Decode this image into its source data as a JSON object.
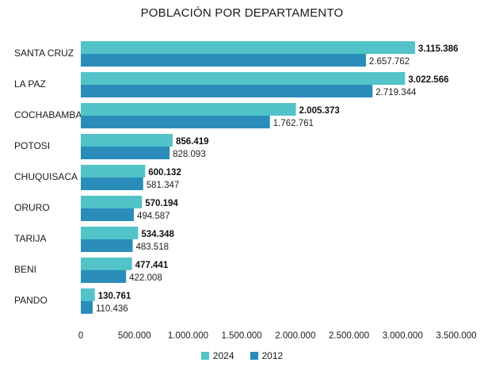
{
  "colors": {
    "series_2024": "#52c3c8",
    "series_2012": "#2a8db9"
  },
  "chart_data": {
    "type": "bar",
    "orientation": "horizontal",
    "title": "POBLACIÓN POR DEPARTAMENTO",
    "categories": [
      "SANTA CRUZ",
      "LA PAZ",
      "COCHABAMBA",
      "POTOSI",
      "CHUQUISACA",
      "ORURO",
      "TARIJA",
      "BENI",
      "PANDO"
    ],
    "series": [
      {
        "name": "2024",
        "values": [
          3115386,
          3022566,
          2005373,
          856419,
          600132,
          570194,
          534348,
          477441,
          130761
        ],
        "labels": [
          "3.115.386",
          "3.022.566",
          "2.005.373",
          "856.419",
          "600.132",
          "570.194",
          "534.348",
          "477.441",
          "130.761"
        ]
      },
      {
        "name": "2012",
        "values": [
          2657762,
          2719344,
          1762761,
          828093,
          581347,
          494587,
          483518,
          422008,
          110436
        ],
        "labels": [
          "2.657.762",
          "2.719.344",
          "1.762.761",
          "828.093",
          "581.347",
          "494.587",
          "483.518",
          "422.008",
          "110.436"
        ]
      }
    ],
    "xlim": [
      0,
      3500000
    ],
    "xticks": [
      0,
      500000,
      1000000,
      1500000,
      2000000,
      2500000,
      3000000,
      3500000
    ],
    "xtick_labels": [
      "0",
      "500.000",
      "1.000.000",
      "1.500.000",
      "2.000.000",
      "2.500.000",
      "3.000.000",
      "3.500.000"
    ],
    "legend_position": "bottom-center",
    "grid": false
  }
}
